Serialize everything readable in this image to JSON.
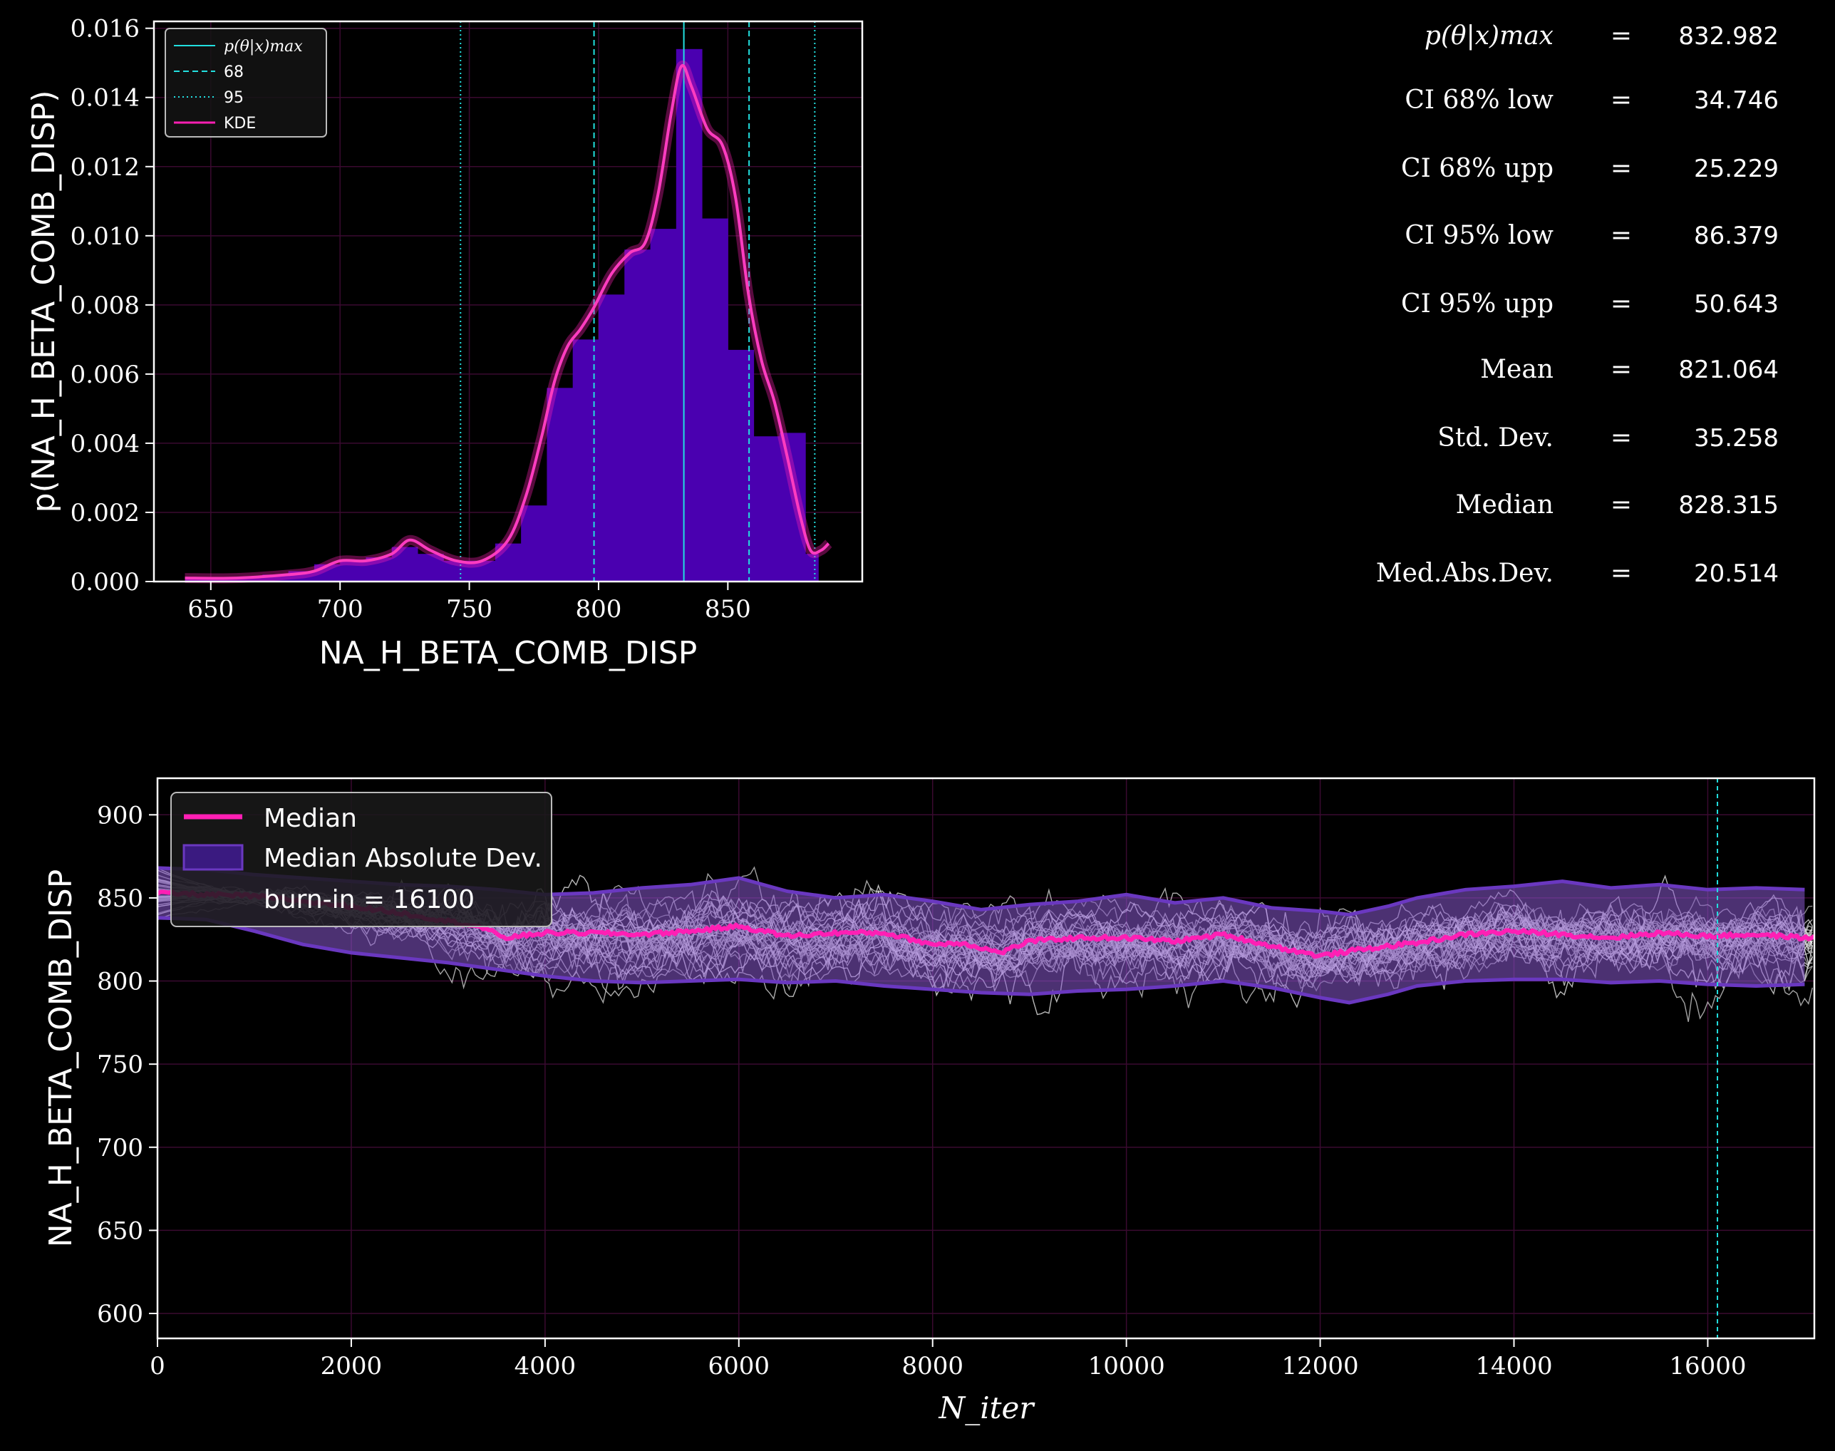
{
  "histogram_panel": {
    "xlabel": "NA_H_BETA_COMB_DISP",
    "ylabel": "p(NA_H_BETA_COMB_DISP)",
    "legend": {
      "pmax": "p(θ|x)max",
      "ci68": "68",
      "ci95": "95",
      "kde": "KDE"
    }
  },
  "stats": {
    "rows": [
      {
        "label": "p(θ|x)max",
        "eq": "=",
        "value": "832.982"
      },
      {
        "label": "CI 68% low",
        "eq": "=",
        "value": "34.746"
      },
      {
        "label": "CI 68% upp",
        "eq": "=",
        "value": "25.229"
      },
      {
        "label": "CI 95% low",
        "eq": "=",
        "value": "86.379"
      },
      {
        "label": "CI 95% upp",
        "eq": "=",
        "value": "50.643"
      },
      {
        "label": "Mean",
        "eq": "=",
        "value": "821.064"
      },
      {
        "label": "Std. Dev.",
        "eq": "=",
        "value": "35.258"
      },
      {
        "label": "Median",
        "eq": "=",
        "value": "828.315"
      },
      {
        "label": "Med.Abs.Dev.",
        "eq": "=",
        "value": "20.514"
      }
    ]
  },
  "trace_panel": {
    "xlabel": "N_iter",
    "ylabel": "NA_H_BETA_COMB_DISP",
    "legend": {
      "median": "Median",
      "mad": "Median Absolute Dev.",
      "burnin": "burn-in = 16100"
    }
  },
  "colors": {
    "background": "#000000",
    "hist_fill": "#4a00b0",
    "kde": "#ff1fb4",
    "cyan": "#22e0e0",
    "mad_band": "#9a70d8",
    "median_line": "#ff1fb4",
    "walkers": "#d8d8d8"
  },
  "chart_data": [
    {
      "type": "bar",
      "xlim": [
        628,
        902
      ],
      "ylim": [
        0,
        0.0162
      ],
      "xticks": [
        650,
        700,
        750,
        800,
        850
      ],
      "yticks": [
        "0.000",
        "0.002",
        "0.004",
        "0.006",
        "0.008",
        "0.010",
        "0.012",
        "0.014",
        "0.016"
      ],
      "bins": [
        {
          "x0": 640,
          "x1": 650,
          "y": 0.0001
        },
        {
          "x0": 650,
          "x1": 660,
          "y": 0.0001
        },
        {
          "x0": 660,
          "x1": 670,
          "y": 0.0001
        },
        {
          "x0": 670,
          "x1": 680,
          "y": 0.0002
        },
        {
          "x0": 680,
          "x1": 690,
          "y": 0.0003
        },
        {
          "x0": 690,
          "x1": 700,
          "y": 0.0005
        },
        {
          "x0": 700,
          "x1": 710,
          "y": 0.0006
        },
        {
          "x0": 710,
          "x1": 720,
          "y": 0.0007
        },
        {
          "x0": 720,
          "x1": 730,
          "y": 0.001
        },
        {
          "x0": 730,
          "x1": 740,
          "y": 0.0008
        },
        {
          "x0": 740,
          "x1": 750,
          "y": 0.0006
        },
        {
          "x0": 750,
          "x1": 760,
          "y": 0.0006
        },
        {
          "x0": 760,
          "x1": 770,
          "y": 0.0011
        },
        {
          "x0": 770,
          "x1": 780,
          "y": 0.0022
        },
        {
          "x0": 780,
          "x1": 790,
          "y": 0.0056
        },
        {
          "x0": 790,
          "x1": 800,
          "y": 0.007
        },
        {
          "x0": 800,
          "x1": 810,
          "y": 0.0083
        },
        {
          "x0": 810,
          "x1": 820,
          "y": 0.0096
        },
        {
          "x0": 820,
          "x1": 830,
          "y": 0.0102
        },
        {
          "x0": 830,
          "x1": 840,
          "y": 0.0154
        },
        {
          "x0": 840,
          "x1": 850,
          "y": 0.0105
        },
        {
          "x0": 850,
          "x1": 860,
          "y": 0.0067
        },
        {
          "x0": 860,
          "x1": 870,
          "y": 0.0042
        },
        {
          "x0": 870,
          "x1": 880,
          "y": 0.0043
        },
        {
          "x0": 880,
          "x1": 885,
          "y": 0.0008
        }
      ],
      "kde": {
        "x": [
          640,
          660,
          680,
          690,
          700,
          710,
          720,
          727,
          735,
          745,
          755,
          765,
          772,
          778,
          783,
          788,
          793,
          798,
          805,
          812,
          818,
          823,
          828,
          832,
          836,
          842,
          848,
          853,
          858,
          863,
          868,
          873,
          878,
          882,
          886,
          889
        ],
        "y": [
          0.0001,
          0.0001,
          0.0002,
          0.0003,
          0.0006,
          0.0006,
          0.0008,
          0.0012,
          0.0009,
          0.0006,
          0.0006,
          0.0012,
          0.0025,
          0.0042,
          0.0058,
          0.0068,
          0.0073,
          0.0079,
          0.0089,
          0.0095,
          0.0098,
          0.0112,
          0.0135,
          0.0149,
          0.0143,
          0.0131,
          0.0126,
          0.0111,
          0.0083,
          0.0064,
          0.0052,
          0.0036,
          0.0019,
          0.0009,
          0.0009,
          0.0011
        ]
      },
      "pmax": 832.982,
      "ci68": [
        798.236,
        858.211
      ],
      "ci95": [
        746.603,
        883.625
      ]
    },
    {
      "type": "line",
      "xlim": [
        0,
        17100
      ],
      "ylim": [
        585,
        922
      ],
      "xticks": [
        0,
        2000,
        4000,
        6000,
        8000,
        10000,
        12000,
        14000,
        16000
      ],
      "yticks": [
        600,
        650,
        700,
        750,
        800,
        850,
        900
      ],
      "burn_in": 16100,
      "median": {
        "x": [
          0,
          500,
          1000,
          1500,
          2000,
          2500,
          3000,
          3300,
          3600,
          4000,
          4500,
          5000,
          5500,
          6000,
          6500,
          7000,
          7500,
          8000,
          8300,
          8700,
          9000,
          9500,
          10000,
          10500,
          11000,
          11500,
          12000,
          12300,
          12700,
          13000,
          13500,
          14000,
          14500,
          15000,
          15500,
          16000,
          16500,
          17000
        ],
        "y": [
          853,
          852,
          851,
          848,
          845,
          841,
          836,
          833,
          826,
          829,
          829,
          828,
          830,
          833,
          827,
          829,
          829,
          822,
          823,
          817,
          824,
          826,
          826,
          824,
          828,
          821,
          815,
          818,
          821,
          823,
          828,
          830,
          828,
          826,
          829,
          827,
          828,
          826
        ]
      },
      "mad_upper": {
        "x": [
          0,
          500,
          1000,
          1500,
          2000,
          2500,
          3000,
          3500,
          4000,
          4500,
          5000,
          5500,
          6000,
          6500,
          7000,
          7500,
          8000,
          8500,
          9000,
          9500,
          10000,
          10500,
          11000,
          11500,
          12000,
          12300,
          12700,
          13000,
          13500,
          14000,
          14500,
          15000,
          15500,
          16000,
          16500,
          17000
        ],
        "y": [
          868,
          867,
          864,
          862,
          860,
          858,
          857,
          855,
          852,
          853,
          856,
          858,
          862,
          854,
          850,
          852,
          848,
          843,
          846,
          848,
          852,
          847,
          850,
          844,
          842,
          840,
          845,
          850,
          855,
          857,
          860,
          856,
          858,
          855,
          856,
          855
        ]
      },
      "mad_lower": {
        "x": [
          0,
          500,
          1000,
          1500,
          2000,
          2500,
          3000,
          3500,
          4000,
          4500,
          5000,
          5500,
          6000,
          6500,
          7000,
          7500,
          8000,
          8500,
          9000,
          9500,
          10000,
          10500,
          11000,
          11500,
          12000,
          12300,
          12700,
          13000,
          13500,
          14000,
          14500,
          15000,
          15500,
          16000,
          16500,
          17000
        ],
        "y": [
          838,
          837,
          830,
          822,
          817,
          814,
          811,
          807,
          803,
          800,
          799,
          800,
          801,
          799,
          800,
          797,
          795,
          793,
          792,
          794,
          795,
          797,
          800,
          796,
          790,
          787,
          792,
          797,
          800,
          801,
          801,
          799,
          800,
          798,
          797,
          798
        ]
      }
    }
  ]
}
